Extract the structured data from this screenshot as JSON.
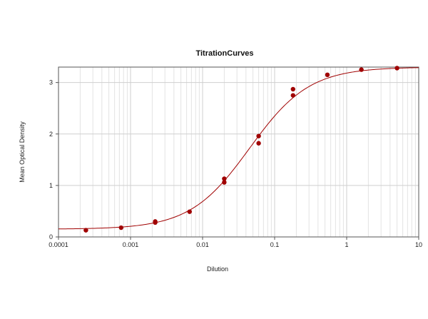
{
  "chart_data": {
    "type": "scatter",
    "title": "TitrationCurves",
    "xlabel": "Dilution",
    "ylabel": "Mean Optical Density",
    "x_scale": "log",
    "xlim": [
      0.0001,
      10
    ],
    "ylim": [
      0,
      3.3
    ],
    "x_ticks": [
      0.0001,
      0.001,
      0.01,
      0.1,
      1,
      10
    ],
    "x_tick_labels": [
      "0.0001",
      "0.001",
      "0.01",
      "0.1",
      "1",
      "10"
    ],
    "y_ticks": [
      0,
      1,
      2,
      3
    ],
    "y_tick_labels": [
      "0",
      "1",
      "2",
      "3"
    ],
    "grid": true,
    "series": [
      {
        "kind": "points",
        "color": "#a00000",
        "points": [
          [
            0.00024,
            0.13
          ],
          [
            0.00074,
            0.18
          ],
          [
            0.0022,
            0.28
          ],
          [
            0.0022,
            0.3
          ],
          [
            0.0066,
            0.49
          ],
          [
            0.02,
            1.06
          ],
          [
            0.02,
            1.13
          ],
          [
            0.06,
            1.82
          ],
          [
            0.06,
            1.96
          ],
          [
            0.18,
            2.75
          ],
          [
            0.18,
            2.87
          ],
          [
            0.54,
            3.15
          ],
          [
            1.6,
            3.25
          ],
          [
            5,
            3.28
          ]
        ]
      },
      {
        "kind": "curve",
        "color": "#a00000",
        "model": "4PL",
        "bottom": 0.15,
        "top": 3.3,
        "ec50": 0.045,
        "hill": 1.05
      }
    ]
  }
}
